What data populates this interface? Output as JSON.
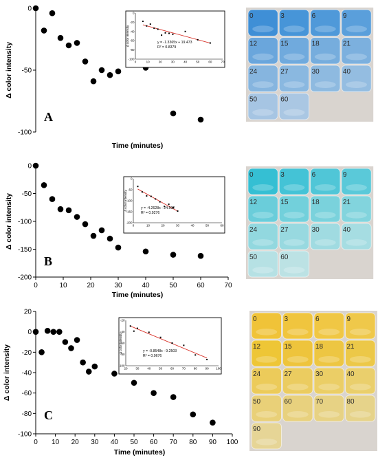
{
  "chart_data": [
    {
      "type": "scatter",
      "panel_label": "A",
      "ylabel": "Δ color intensity",
      "xlabel": "Time (minutes)",
      "ylim": [
        -100,
        0
      ],
      "yticks": [
        0,
        -50,
        -100
      ],
      "x": [
        0,
        3,
        6,
        9,
        12,
        15,
        18,
        21,
        24,
        27,
        30,
        40,
        50,
        60
      ],
      "y": [
        0,
        -18,
        -4,
        -24,
        -30,
        -28,
        -43,
        -59,
        -50,
        -54,
        -51,
        -48,
        -85,
        -90
      ],
      "inset": {
        "type": "scatter",
        "regression": true,
        "yaxis_label": "Δ color intensity",
        "equation": "y = -1.3365x + 19.473",
        "r2": "R² = 0.8379",
        "xlim": [
          0,
          70
        ],
        "ylim": [
          -100,
          0
        ],
        "xticks": [
          "0",
          "10",
          "20",
          "30",
          "40",
          "50",
          "60",
          "70"
        ],
        "yticks": [
          "0",
          "-20",
          "-40",
          "-60",
          "-80",
          "-100"
        ],
        "x": [
          6,
          9,
          12,
          15,
          18,
          21,
          24,
          27,
          30,
          40,
          50,
          60
        ],
        "y": [
          -18,
          -28,
          -24,
          -33,
          -35,
          -48,
          -43,
          -44,
          -46,
          -40,
          -58,
          -65
        ],
        "line_color": "#d9342b"
      },
      "wells": {
        "labels": [
          "0",
          "3",
          "6",
          "9",
          "12",
          "15",
          "18",
          "21",
          "24",
          "27",
          "30",
          "40",
          "50",
          "60"
        ],
        "colors": [
          "#3f8fd6",
          "#4795d8",
          "#4f99d9",
          "#5a9fdb",
          "#6aa6dc",
          "#70aadd",
          "#76addd",
          "#7cb0de",
          "#86b5df",
          "#8ab8e0",
          "#8ebae0",
          "#94bde1",
          "#a6c5e3",
          "#aac7e3"
        ]
      }
    },
    {
      "type": "scatter",
      "panel_label": "B",
      "ylabel": "Δ color intensity",
      "xlabel": "Time (minutes)",
      "xlim": [
        0,
        70
      ],
      "ylim": [
        -200,
        0
      ],
      "xticks": [
        0,
        10,
        20,
        30,
        40,
        50,
        60,
        70
      ],
      "yticks": [
        0,
        -50,
        -100,
        -150,
        -200
      ],
      "x": [
        0,
        3,
        6,
        9,
        12,
        15,
        18,
        21,
        24,
        27,
        30,
        40,
        50,
        60
      ],
      "y": [
        0,
        -35,
        -60,
        -78,
        -80,
        -92,
        -105,
        -126,
        -116,
        -131,
        -147,
        -154,
        -160,
        -162
      ],
      "inset": {
        "type": "scatter",
        "regression": true,
        "yaxis_label": "Δ color intensity",
        "equation": "y = -4.2628x - 24.592",
        "r2": "R² = 0.9276",
        "xlim": [
          0,
          60
        ],
        "ylim": [
          -200,
          0
        ],
        "xticks": [
          "0",
          "10",
          "20",
          "30",
          "40",
          "50",
          "60"
        ],
        "yticks": [
          "0",
          "-50",
          "-100",
          "-150",
          "-200"
        ],
        "x": [
          3,
          6,
          9,
          12,
          15,
          18,
          21,
          24,
          27,
          30
        ],
        "y": [
          -35,
          -60,
          -78,
          -80,
          -92,
          -105,
          -126,
          -116,
          -131,
          -147
        ],
        "line_color": "#d9342b"
      },
      "wells": {
        "labels": [
          "0",
          "3",
          "6",
          "9",
          "12",
          "15",
          "18",
          "21",
          "24",
          "27",
          "30",
          "40",
          "50",
          "60"
        ],
        "colors": [
          "#35bfd3",
          "#44c3d6",
          "#50c6d7",
          "#5ac9d9",
          "#6acdda",
          "#72d0db",
          "#7ad2dc",
          "#82d4dd",
          "#92d8df",
          "#98d9e0",
          "#a0dbe1",
          "#a6dde2",
          "#b6e1e4",
          "#bce2e4"
        ]
      }
    },
    {
      "type": "scatter",
      "panel_label": "C",
      "ylabel": "Δ color intensity",
      "xlabel": "Time (minutes)",
      "xlim": [
        0,
        100
      ],
      "ylim": [
        -100,
        20
      ],
      "xticks": [
        0,
        10,
        20,
        30,
        40,
        50,
        60,
        70,
        80,
        90,
        100
      ],
      "yticks": [
        20,
        0,
        -20,
        -40,
        -60,
        -80,
        -100
      ],
      "x": [
        0,
        3,
        6,
        9,
        12,
        15,
        18,
        21,
        24,
        27,
        30,
        40,
        50,
        60,
        70,
        80,
        90
      ],
      "y": [
        0,
        -20,
        1,
        0,
        0,
        -10,
        -16,
        -8,
        -30,
        -39,
        -34,
        -41,
        -50,
        -60,
        -64,
        -81,
        -89
      ],
      "inset": {
        "type": "scatter",
        "regression": true,
        "yaxis_label": "Δ color intensity",
        "equation": "y = -0.8548x - 9.2503",
        "r2": "R² = 0.9676",
        "xlim": [
          20,
          100
        ],
        "ylim": [
          -100,
          -20
        ],
        "xticks": [
          "20",
          "30",
          "40",
          "50",
          "60",
          "70",
          "80",
          "90",
          "100"
        ],
        "yticks": [
          "-20",
          "-40",
          "-60",
          "-80",
          "-100"
        ],
        "x": [
          24,
          27,
          30,
          40,
          50,
          60,
          70,
          80,
          90
        ],
        "y": [
          -30,
          -39,
          -34,
          -41,
          -50,
          -60,
          -64,
          -81,
          -89
        ],
        "line_color": "#d9342b"
      },
      "wells": {
        "labels": [
          "0",
          "3",
          "6",
          "9",
          "12",
          "15",
          "18",
          "21",
          "24",
          "27",
          "30",
          "40",
          "50",
          "60",
          "70",
          "80",
          "90"
        ],
        "colors": [
          "#f0c338",
          "#f0c53e",
          "#f0c744",
          "#efc84a",
          "#eec636",
          "#eec43c",
          "#edc642",
          "#ecc848",
          "#eccb5a",
          "#ebcc60",
          "#ebce66",
          "#eacf6c",
          "#e9d078",
          "#e8d17e",
          "#e7d284",
          "#e6d38a",
          "#e6d596"
        ]
      }
    }
  ]
}
